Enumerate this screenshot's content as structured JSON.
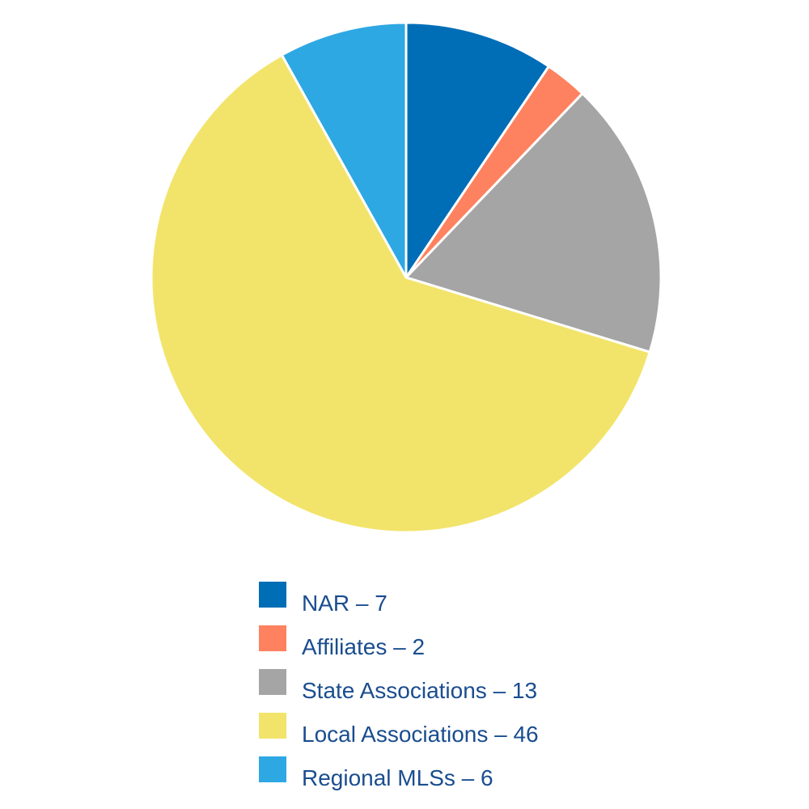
{
  "chart_data": {
    "type": "pie",
    "slices": [
      {
        "label": "NAR – 7",
        "value": 7,
        "color": "#006db7"
      },
      {
        "label": "Affiliates – 2",
        "value": 2,
        "color": "#fe8260"
      },
      {
        "label": "State Associations – 13",
        "value": 13,
        "color": "#a5a5a5"
      },
      {
        "label": "Local Associations – 46",
        "value": 46,
        "color": "#f2e46b"
      },
      {
        "label": "Regional MLSs – 6",
        "value": 6,
        "color": "#2ea8e3"
      }
    ],
    "start_angle_deg": 0,
    "direction": "clockwise",
    "legend_position": "bottom",
    "title": "",
    "text_color": "#1a4d8f"
  }
}
